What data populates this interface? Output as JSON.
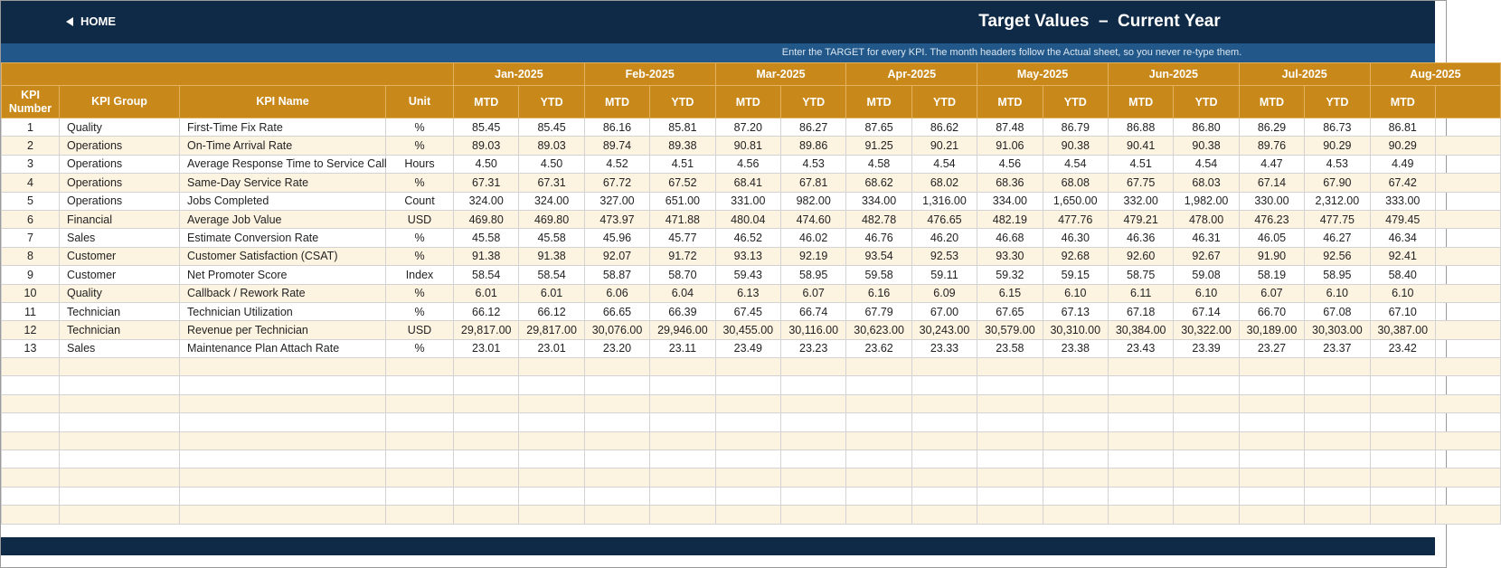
{
  "header": {
    "home": "HOME",
    "title": "Target Values  –  Current Year",
    "subtitle": "Enter the TARGET for every KPI. The month headers follow the Actual sheet, so you never re-type them."
  },
  "table": {
    "columns": [
      "KPI Number",
      "KPI Group",
      "KPI Name",
      "Unit"
    ],
    "months": [
      {
        "label": "Jan-2025",
        "sub": [
          "MTD",
          "YTD"
        ]
      },
      {
        "label": "Feb-2025",
        "sub": [
          "MTD",
          "YTD"
        ]
      },
      {
        "label": "Mar-2025",
        "sub": [
          "MTD",
          "YTD"
        ]
      },
      {
        "label": "Apr-2025",
        "sub": [
          "MTD",
          "YTD"
        ]
      },
      {
        "label": "May-2025",
        "sub": [
          "MTD",
          "YTD"
        ]
      },
      {
        "label": "Jun-2025",
        "sub": [
          "MTD",
          "YTD"
        ]
      },
      {
        "label": "Jul-2025",
        "sub": [
          "MTD",
          "YTD"
        ]
      },
      {
        "label": "Aug-2025",
        "sub": [
          "MTD"
        ]
      }
    ],
    "rows": [
      [
        "1",
        "Quality",
        "First-Time Fix Rate",
        "%",
        "85.45",
        "85.45",
        "86.16",
        "85.81",
        "87.20",
        "86.27",
        "87.65",
        "86.62",
        "87.48",
        "86.79",
        "86.88",
        "86.80",
        "86.29",
        "86.73",
        "86.81"
      ],
      [
        "2",
        "Operations",
        "On-Time Arrival Rate",
        "%",
        "89.03",
        "89.03",
        "89.74",
        "89.38",
        "90.81",
        "89.86",
        "91.25",
        "90.21",
        "91.06",
        "90.38",
        "90.41",
        "90.38",
        "89.76",
        "90.29",
        "90.29"
      ],
      [
        "3",
        "Operations",
        "Average Response Time to Service Call",
        "Hours",
        "4.50",
        "4.50",
        "4.52",
        "4.51",
        "4.56",
        "4.53",
        "4.58",
        "4.54",
        "4.56",
        "4.54",
        "4.51",
        "4.54",
        "4.47",
        "4.53",
        "4.49"
      ],
      [
        "4",
        "Operations",
        "Same-Day Service Rate",
        "%",
        "67.31",
        "67.31",
        "67.72",
        "67.52",
        "68.41",
        "67.81",
        "68.62",
        "68.02",
        "68.36",
        "68.08",
        "67.75",
        "68.03",
        "67.14",
        "67.90",
        "67.42"
      ],
      [
        "5",
        "Operations",
        "Jobs Completed",
        "Count",
        "324.00",
        "324.00",
        "327.00",
        "651.00",
        "331.00",
        "982.00",
        "334.00",
        "1,316.00",
        "334.00",
        "1,650.00",
        "332.00",
        "1,982.00",
        "330.00",
        "2,312.00",
        "333.00"
      ],
      [
        "6",
        "Financial",
        "Average Job Value",
        "USD",
        "469.80",
        "469.80",
        "473.97",
        "471.88",
        "480.04",
        "474.60",
        "482.78",
        "476.65",
        "482.19",
        "477.76",
        "479.21",
        "478.00",
        "476.23",
        "477.75",
        "479.45"
      ],
      [
        "7",
        "Sales",
        "Estimate Conversion Rate",
        "%",
        "45.58",
        "45.58",
        "45.96",
        "45.77",
        "46.52",
        "46.02",
        "46.76",
        "46.20",
        "46.68",
        "46.30",
        "46.36",
        "46.31",
        "46.05",
        "46.27",
        "46.34"
      ],
      [
        "8",
        "Customer",
        "Customer Satisfaction (CSAT)",
        "%",
        "91.38",
        "91.38",
        "92.07",
        "91.72",
        "93.13",
        "92.19",
        "93.54",
        "92.53",
        "93.30",
        "92.68",
        "92.60",
        "92.67",
        "91.90",
        "92.56",
        "92.41"
      ],
      [
        "9",
        "Customer",
        "Net Promoter Score",
        "Index",
        "58.54",
        "58.54",
        "58.87",
        "58.70",
        "59.43",
        "58.95",
        "59.58",
        "59.11",
        "59.32",
        "59.15",
        "58.75",
        "59.08",
        "58.19",
        "58.95",
        "58.40"
      ],
      [
        "10",
        "Quality",
        "Callback / Rework Rate",
        "%",
        "6.01",
        "6.01",
        "6.06",
        "6.04",
        "6.13",
        "6.07",
        "6.16",
        "6.09",
        "6.15",
        "6.10",
        "6.11",
        "6.10",
        "6.07",
        "6.10",
        "6.10"
      ],
      [
        "11",
        "Technician",
        "Technician Utilization",
        "%",
        "66.12",
        "66.12",
        "66.65",
        "66.39",
        "67.45",
        "66.74",
        "67.79",
        "67.00",
        "67.65",
        "67.13",
        "67.18",
        "67.14",
        "66.70",
        "67.08",
        "67.10"
      ],
      [
        "12",
        "Technician",
        "Revenue per Technician",
        "USD",
        "29,817.00",
        "29,817.00",
        "30,076.00",
        "29,946.00",
        "30,455.00",
        "30,116.00",
        "30,623.00",
        "30,243.00",
        "30,579.00",
        "30,310.00",
        "30,384.00",
        "30,322.00",
        "30,189.00",
        "30,303.00",
        "30,387.00"
      ],
      [
        "13",
        "Sales",
        "Maintenance Plan Attach Rate",
        "%",
        "23.01",
        "23.01",
        "23.20",
        "23.11",
        "23.49",
        "23.23",
        "23.62",
        "23.33",
        "23.58",
        "23.38",
        "23.43",
        "23.39",
        "23.27",
        "23.37",
        "23.42"
      ]
    ]
  }
}
